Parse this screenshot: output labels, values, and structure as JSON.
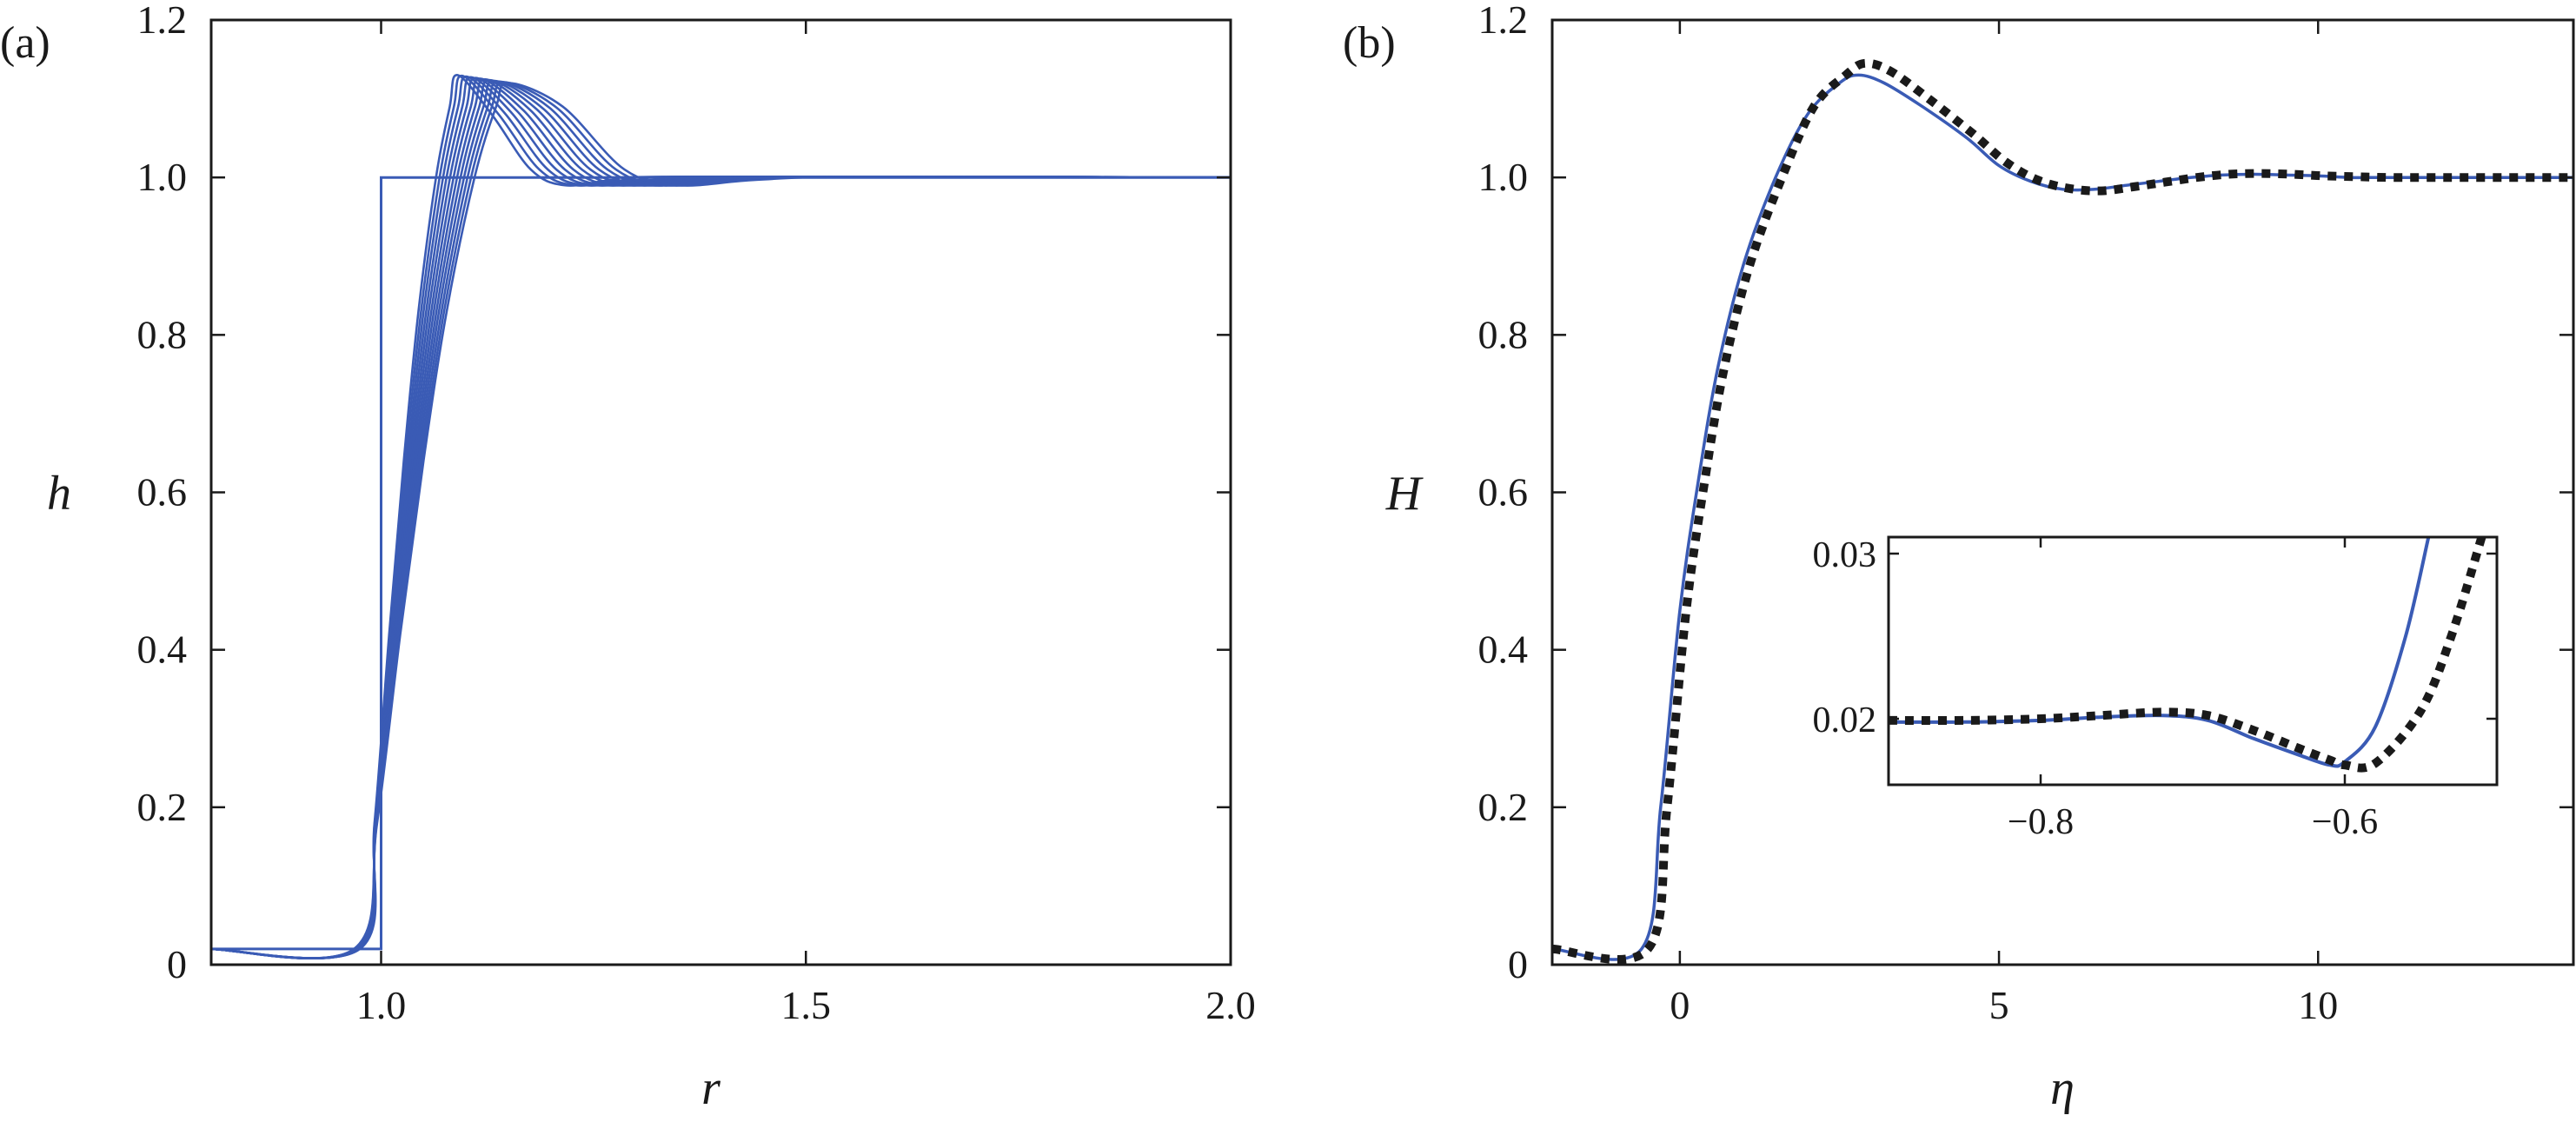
{
  "chart_data": [
    {
      "panel": "(a)",
      "type": "line",
      "xlabel": "r",
      "ylabel": "h",
      "xlim": [
        0.8,
        2.0
      ],
      "ylim": [
        0,
        1.2
      ],
      "xticks": [
        1.0,
        1.5,
        2.0
      ],
      "xtick_labels": [
        "1.0",
        "1.5",
        "2.0"
      ],
      "yticks": [
        0,
        0.2,
        0.4,
        0.6,
        0.8,
        1.0,
        1.2
      ],
      "ytick_labels": [
        "0",
        "0.2",
        "0.4",
        "0.6",
        "0.8",
        "1.0",
        "1.2"
      ],
      "grid": false,
      "color": "#3a5bb5",
      "initial_step": {
        "x": [
          0.8,
          1.0,
          1.0,
          2.0
        ],
        "y": [
          0.02,
          0.02,
          1.0,
          1.0
        ]
      },
      "profile_family": {
        "count": 12,
        "shape": "sigmoid rising from 0.02 with overshoot then damped ripple to 1.0",
        "rise_start": [
          0.975,
          0.968
        ],
        "peak_x": [
          1.09,
          1.15
        ],
        "peak_y": [
          1.13,
          1.12
        ],
        "tail_value": 1.0
      }
    },
    {
      "panel": "(b)",
      "type": "line",
      "xlabel": "η",
      "ylabel": "H",
      "xlim": [
        -2,
        14
      ],
      "ylim": [
        0,
        1.2
      ],
      "xticks": [
        0,
        5,
        10
      ],
      "xtick_labels": [
        "0",
        "5",
        "10"
      ],
      "yticks": [
        0,
        0.2,
        0.4,
        0.6,
        0.8,
        1.0,
        1.2
      ],
      "ytick_labels": [
        "0",
        "0.2",
        "0.4",
        "0.6",
        "0.8",
        "1.0",
        "1.2"
      ],
      "grid": false,
      "series": [
        {
          "style": "solid",
          "color": "#3a5bb5",
          "x": [
            -2,
            -0.6,
            -0.3,
            0,
            0.3,
            0.6,
            1.0,
            1.5,
            2.0,
            2.5,
            2.8,
            3.2,
            3.8,
            4.5,
            5.0,
            5.5,
            6.0,
            6.5,
            7.0,
            7.5,
            8.0,
            8.5,
            9.0,
            9.5,
            10.0,
            10.5,
            11.0,
            12.0,
            13.0,
            14.0
          ],
          "y": [
            0.02,
            0.02,
            0.2,
            0.45,
            0.62,
            0.76,
            0.89,
            1.0,
            1.08,
            1.12,
            1.13,
            1.12,
            1.09,
            1.05,
            1.015,
            0.995,
            0.985,
            0.985,
            0.99,
            0.995,
            1.0,
            1.003,
            1.004,
            1.003,
            1.002,
            1.0,
            1.0,
            1.0,
            1.0,
            1.0
          ]
        },
        {
          "style": "dotted",
          "color": "#1a1a1a",
          "x": [
            -2,
            -0.5,
            -0.2,
            0.1,
            0.4,
            0.7,
            1.1,
            1.6,
            2.1,
            2.6,
            2.9,
            3.3,
            3.9,
            4.6,
            5.1,
            5.6,
            6.1,
            6.6,
            7.1,
            7.6,
            8.1,
            8.6,
            9.1,
            9.6,
            10.1,
            10.6,
            11.1,
            12.0,
            13.0,
            14.0
          ],
          "y": [
            0.02,
            0.02,
            0.2,
            0.45,
            0.62,
            0.76,
            0.89,
            1.0,
            1.09,
            1.13,
            1.145,
            1.135,
            1.1,
            1.055,
            1.02,
            0.997,
            0.986,
            0.983,
            0.988,
            0.994,
            1.0,
            1.004,
            1.005,
            1.004,
            1.002,
            1.001,
            1.0,
            1.0,
            1.0,
            1.0
          ]
        }
      ],
      "inset": {
        "xlim": [
          -0.9,
          -0.5
        ],
        "ylim": [
          0.016,
          0.031
        ],
        "xticks": [
          -0.8,
          -0.6
        ],
        "xtick_labels": [
          "−0.8",
          "−0.6"
        ],
        "yticks": [
          0.02,
          0.03
        ],
        "ytick_labels": [
          "0.02",
          "0.03"
        ],
        "series": [
          {
            "style": "solid",
            "color": "#3a5bb5",
            "x": [
              -0.9,
              -0.85,
              -0.8,
              -0.76,
              -0.72,
              -0.69,
              -0.66,
              -0.63,
              -0.61,
              -0.6,
              -0.58,
              -0.56,
              -0.545
            ],
            "y": [
              0.0198,
              0.0198,
              0.0199,
              0.0201,
              0.0202,
              0.0199,
              0.0188,
              0.0178,
              0.0172,
              0.0174,
              0.0195,
              0.025,
              0.031
            ]
          },
          {
            "style": "dotted",
            "color": "#1a1a1a",
            "x": [
              -0.9,
              -0.85,
              -0.8,
              -0.76,
              -0.72,
              -0.69,
              -0.66,
              -0.63,
              -0.61,
              -0.6,
              -0.58,
              -0.55,
              -0.53,
              -0.51
            ],
            "y": [
              0.0199,
              0.0199,
              0.02,
              0.0202,
              0.0204,
              0.0202,
              0.0193,
              0.0182,
              0.0175,
              0.0172,
              0.0173,
              0.0205,
              0.025,
              0.031
            ]
          }
        ]
      }
    }
  ]
}
